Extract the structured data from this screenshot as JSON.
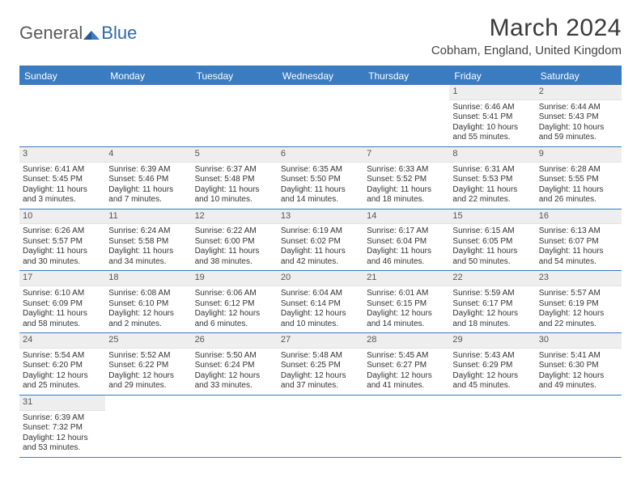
{
  "brand": {
    "part1": "General",
    "part2": "Blue"
  },
  "title": "March 2024",
  "location": "Cobham, England, United Kingdom",
  "colors": {
    "header_bg": "#3b7bbf",
    "header_text": "#ffffff",
    "daynum_bg": "#eeeeee",
    "rule": "#3b7bbf",
    "text": "#333333",
    "background": "#ffffff"
  },
  "day_names": [
    "Sunday",
    "Monday",
    "Tuesday",
    "Wednesday",
    "Thursday",
    "Friday",
    "Saturday"
  ],
  "weeks": [
    [
      {
        "n": "",
        "sunrise": "",
        "sunset": "",
        "daylight": ""
      },
      {
        "n": "",
        "sunrise": "",
        "sunset": "",
        "daylight": ""
      },
      {
        "n": "",
        "sunrise": "",
        "sunset": "",
        "daylight": ""
      },
      {
        "n": "",
        "sunrise": "",
        "sunset": "",
        "daylight": ""
      },
      {
        "n": "",
        "sunrise": "",
        "sunset": "",
        "daylight": ""
      },
      {
        "n": "1",
        "sunrise": "Sunrise: 6:46 AM",
        "sunset": "Sunset: 5:41 PM",
        "daylight": "Daylight: 10 hours and 55 minutes."
      },
      {
        "n": "2",
        "sunrise": "Sunrise: 6:44 AM",
        "sunset": "Sunset: 5:43 PM",
        "daylight": "Daylight: 10 hours and 59 minutes."
      }
    ],
    [
      {
        "n": "3",
        "sunrise": "Sunrise: 6:41 AM",
        "sunset": "Sunset: 5:45 PM",
        "daylight": "Daylight: 11 hours and 3 minutes."
      },
      {
        "n": "4",
        "sunrise": "Sunrise: 6:39 AM",
        "sunset": "Sunset: 5:46 PM",
        "daylight": "Daylight: 11 hours and 7 minutes."
      },
      {
        "n": "5",
        "sunrise": "Sunrise: 6:37 AM",
        "sunset": "Sunset: 5:48 PM",
        "daylight": "Daylight: 11 hours and 10 minutes."
      },
      {
        "n": "6",
        "sunrise": "Sunrise: 6:35 AM",
        "sunset": "Sunset: 5:50 PM",
        "daylight": "Daylight: 11 hours and 14 minutes."
      },
      {
        "n": "7",
        "sunrise": "Sunrise: 6:33 AM",
        "sunset": "Sunset: 5:52 PM",
        "daylight": "Daylight: 11 hours and 18 minutes."
      },
      {
        "n": "8",
        "sunrise": "Sunrise: 6:31 AM",
        "sunset": "Sunset: 5:53 PM",
        "daylight": "Daylight: 11 hours and 22 minutes."
      },
      {
        "n": "9",
        "sunrise": "Sunrise: 6:28 AM",
        "sunset": "Sunset: 5:55 PM",
        "daylight": "Daylight: 11 hours and 26 minutes."
      }
    ],
    [
      {
        "n": "10",
        "sunrise": "Sunrise: 6:26 AM",
        "sunset": "Sunset: 5:57 PM",
        "daylight": "Daylight: 11 hours and 30 minutes."
      },
      {
        "n": "11",
        "sunrise": "Sunrise: 6:24 AM",
        "sunset": "Sunset: 5:58 PM",
        "daylight": "Daylight: 11 hours and 34 minutes."
      },
      {
        "n": "12",
        "sunrise": "Sunrise: 6:22 AM",
        "sunset": "Sunset: 6:00 PM",
        "daylight": "Daylight: 11 hours and 38 minutes."
      },
      {
        "n": "13",
        "sunrise": "Sunrise: 6:19 AM",
        "sunset": "Sunset: 6:02 PM",
        "daylight": "Daylight: 11 hours and 42 minutes."
      },
      {
        "n": "14",
        "sunrise": "Sunrise: 6:17 AM",
        "sunset": "Sunset: 6:04 PM",
        "daylight": "Daylight: 11 hours and 46 minutes."
      },
      {
        "n": "15",
        "sunrise": "Sunrise: 6:15 AM",
        "sunset": "Sunset: 6:05 PM",
        "daylight": "Daylight: 11 hours and 50 minutes."
      },
      {
        "n": "16",
        "sunrise": "Sunrise: 6:13 AM",
        "sunset": "Sunset: 6:07 PM",
        "daylight": "Daylight: 11 hours and 54 minutes."
      }
    ],
    [
      {
        "n": "17",
        "sunrise": "Sunrise: 6:10 AM",
        "sunset": "Sunset: 6:09 PM",
        "daylight": "Daylight: 11 hours and 58 minutes."
      },
      {
        "n": "18",
        "sunrise": "Sunrise: 6:08 AM",
        "sunset": "Sunset: 6:10 PM",
        "daylight": "Daylight: 12 hours and 2 minutes."
      },
      {
        "n": "19",
        "sunrise": "Sunrise: 6:06 AM",
        "sunset": "Sunset: 6:12 PM",
        "daylight": "Daylight: 12 hours and 6 minutes."
      },
      {
        "n": "20",
        "sunrise": "Sunrise: 6:04 AM",
        "sunset": "Sunset: 6:14 PM",
        "daylight": "Daylight: 12 hours and 10 minutes."
      },
      {
        "n": "21",
        "sunrise": "Sunrise: 6:01 AM",
        "sunset": "Sunset: 6:15 PM",
        "daylight": "Daylight: 12 hours and 14 minutes."
      },
      {
        "n": "22",
        "sunrise": "Sunrise: 5:59 AM",
        "sunset": "Sunset: 6:17 PM",
        "daylight": "Daylight: 12 hours and 18 minutes."
      },
      {
        "n": "23",
        "sunrise": "Sunrise: 5:57 AM",
        "sunset": "Sunset: 6:19 PM",
        "daylight": "Daylight: 12 hours and 22 minutes."
      }
    ],
    [
      {
        "n": "24",
        "sunrise": "Sunrise: 5:54 AM",
        "sunset": "Sunset: 6:20 PM",
        "daylight": "Daylight: 12 hours and 25 minutes."
      },
      {
        "n": "25",
        "sunrise": "Sunrise: 5:52 AM",
        "sunset": "Sunset: 6:22 PM",
        "daylight": "Daylight: 12 hours and 29 minutes."
      },
      {
        "n": "26",
        "sunrise": "Sunrise: 5:50 AM",
        "sunset": "Sunset: 6:24 PM",
        "daylight": "Daylight: 12 hours and 33 minutes."
      },
      {
        "n": "27",
        "sunrise": "Sunrise: 5:48 AM",
        "sunset": "Sunset: 6:25 PM",
        "daylight": "Daylight: 12 hours and 37 minutes."
      },
      {
        "n": "28",
        "sunrise": "Sunrise: 5:45 AM",
        "sunset": "Sunset: 6:27 PM",
        "daylight": "Daylight: 12 hours and 41 minutes."
      },
      {
        "n": "29",
        "sunrise": "Sunrise: 5:43 AM",
        "sunset": "Sunset: 6:29 PM",
        "daylight": "Daylight: 12 hours and 45 minutes."
      },
      {
        "n": "30",
        "sunrise": "Sunrise: 5:41 AM",
        "sunset": "Sunset: 6:30 PM",
        "daylight": "Daylight: 12 hours and 49 minutes."
      }
    ],
    [
      {
        "n": "31",
        "sunrise": "Sunrise: 6:39 AM",
        "sunset": "Sunset: 7:32 PM",
        "daylight": "Daylight: 12 hours and 53 minutes."
      },
      {
        "n": "",
        "sunrise": "",
        "sunset": "",
        "daylight": ""
      },
      {
        "n": "",
        "sunrise": "",
        "sunset": "",
        "daylight": ""
      },
      {
        "n": "",
        "sunrise": "",
        "sunset": "",
        "daylight": ""
      },
      {
        "n": "",
        "sunrise": "",
        "sunset": "",
        "daylight": ""
      },
      {
        "n": "",
        "sunrise": "",
        "sunset": "",
        "daylight": ""
      },
      {
        "n": "",
        "sunrise": "",
        "sunset": "",
        "daylight": ""
      }
    ]
  ]
}
